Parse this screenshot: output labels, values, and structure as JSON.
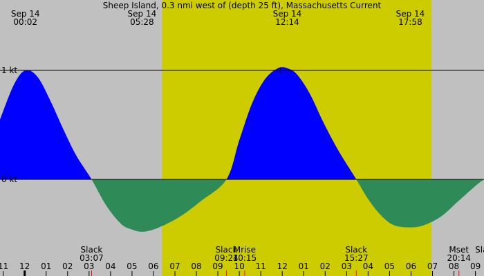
{
  "chart_data": {
    "type": "area",
    "title": "Sheep Island, 0.3 nmi west of (depth 25 ft), Massachusetts Current",
    "x_axis_unit": "hour of day (local time)",
    "xlim": [
      -1.15,
      21.4
    ],
    "ylim": [
      -0.9,
      1.65
    ],
    "daylight": {
      "start": 6.4,
      "end": 18.95
    },
    "colors": {
      "background": "#c0c0c0",
      "daylight": "#cccc00",
      "flood": "#0000ff",
      "ebb": "#2e8b57",
      "line": "#000000",
      "event_tick": "#ff0000",
      "major_tick": "#000000"
    },
    "y_ticks": [
      {
        "value": 1,
        "label": "1 kt"
      },
      {
        "value": 0,
        "label": "0 kt"
      }
    ],
    "hour_ticks": [
      {
        "x": -1,
        "label": "11"
      },
      {
        "x": 0,
        "label": "12"
      },
      {
        "x": 1,
        "label": "01"
      },
      {
        "x": 2,
        "label": "02"
      },
      {
        "x": 3,
        "label": "03"
      },
      {
        "x": 4,
        "label": "04"
      },
      {
        "x": 5,
        "label": "05"
      },
      {
        "x": 6,
        "label": "06"
      },
      {
        "x": 7,
        "label": "07"
      },
      {
        "x": 8,
        "label": "08"
      },
      {
        "x": 9,
        "label": "09"
      },
      {
        "x": 10,
        "label": "10"
      },
      {
        "x": 11,
        "label": "11"
      },
      {
        "x": 12,
        "label": "12"
      },
      {
        "x": 13,
        "label": "01"
      },
      {
        "x": 14,
        "label": "02"
      },
      {
        "x": 15,
        "label": "03"
      },
      {
        "x": 16,
        "label": "04"
      },
      {
        "x": 17,
        "label": "05"
      },
      {
        "x": 18,
        "label": "06"
      },
      {
        "x": 19,
        "label": "07"
      },
      {
        "x": 20,
        "label": "08"
      },
      {
        "x": 21,
        "label": "09"
      }
    ],
    "peak_labels": [
      {
        "x": 0.033,
        "date": "Sep 14",
        "time": "00:02"
      },
      {
        "x": 5.467,
        "date": "Sep 14",
        "time": "05:28"
      },
      {
        "x": 12.233,
        "date": "Sep 14",
        "time": "12:14"
      },
      {
        "x": 17.967,
        "date": "Sep 14",
        "time": "17:58"
      }
    ],
    "events": [
      {
        "x": 3.117,
        "name": "Slack",
        "time": "03:07"
      },
      {
        "x": 9.4,
        "name": "Slack",
        "time": "09:24"
      },
      {
        "x": 10.25,
        "name": "Mrise",
        "time": "10:15"
      },
      {
        "x": 15.45,
        "name": "Slack",
        "time": "15:27"
      },
      {
        "x": 20.233,
        "name": "Mset",
        "time": "20:14"
      },
      {
        "x": 21.5,
        "name": "Slack",
        "time": ""
      }
    ],
    "series": [
      {
        "x": [
          -1.15,
          -0.5,
          0.033,
          0.6,
          1.2,
          1.8,
          2.4,
          3.117,
          3.8,
          4.5,
          5.0,
          5.467,
          6.0,
          6.7,
          7.4,
          8.2,
          9.4,
          10.0,
          10.6,
          11.2,
          11.8,
          12.233,
          12.7,
          13.3,
          13.9,
          14.6,
          15.45,
          16.0,
          16.6,
          17.2,
          17.967,
          18.6,
          19.4,
          20.2,
          21.0,
          21.4
        ],
        "y": [
          0.55,
          0.87,
          1.0,
          0.94,
          0.72,
          0.46,
          0.22,
          0.0,
          -0.24,
          -0.41,
          -0.46,
          -0.48,
          -0.46,
          -0.4,
          -0.32,
          -0.2,
          0.0,
          0.36,
          0.7,
          0.92,
          1.02,
          1.02,
          0.96,
          0.78,
          0.53,
          0.27,
          0.0,
          -0.18,
          -0.33,
          -0.42,
          -0.44,
          -0.42,
          -0.34,
          -0.2,
          -0.06,
          0.0
        ]
      }
    ]
  }
}
